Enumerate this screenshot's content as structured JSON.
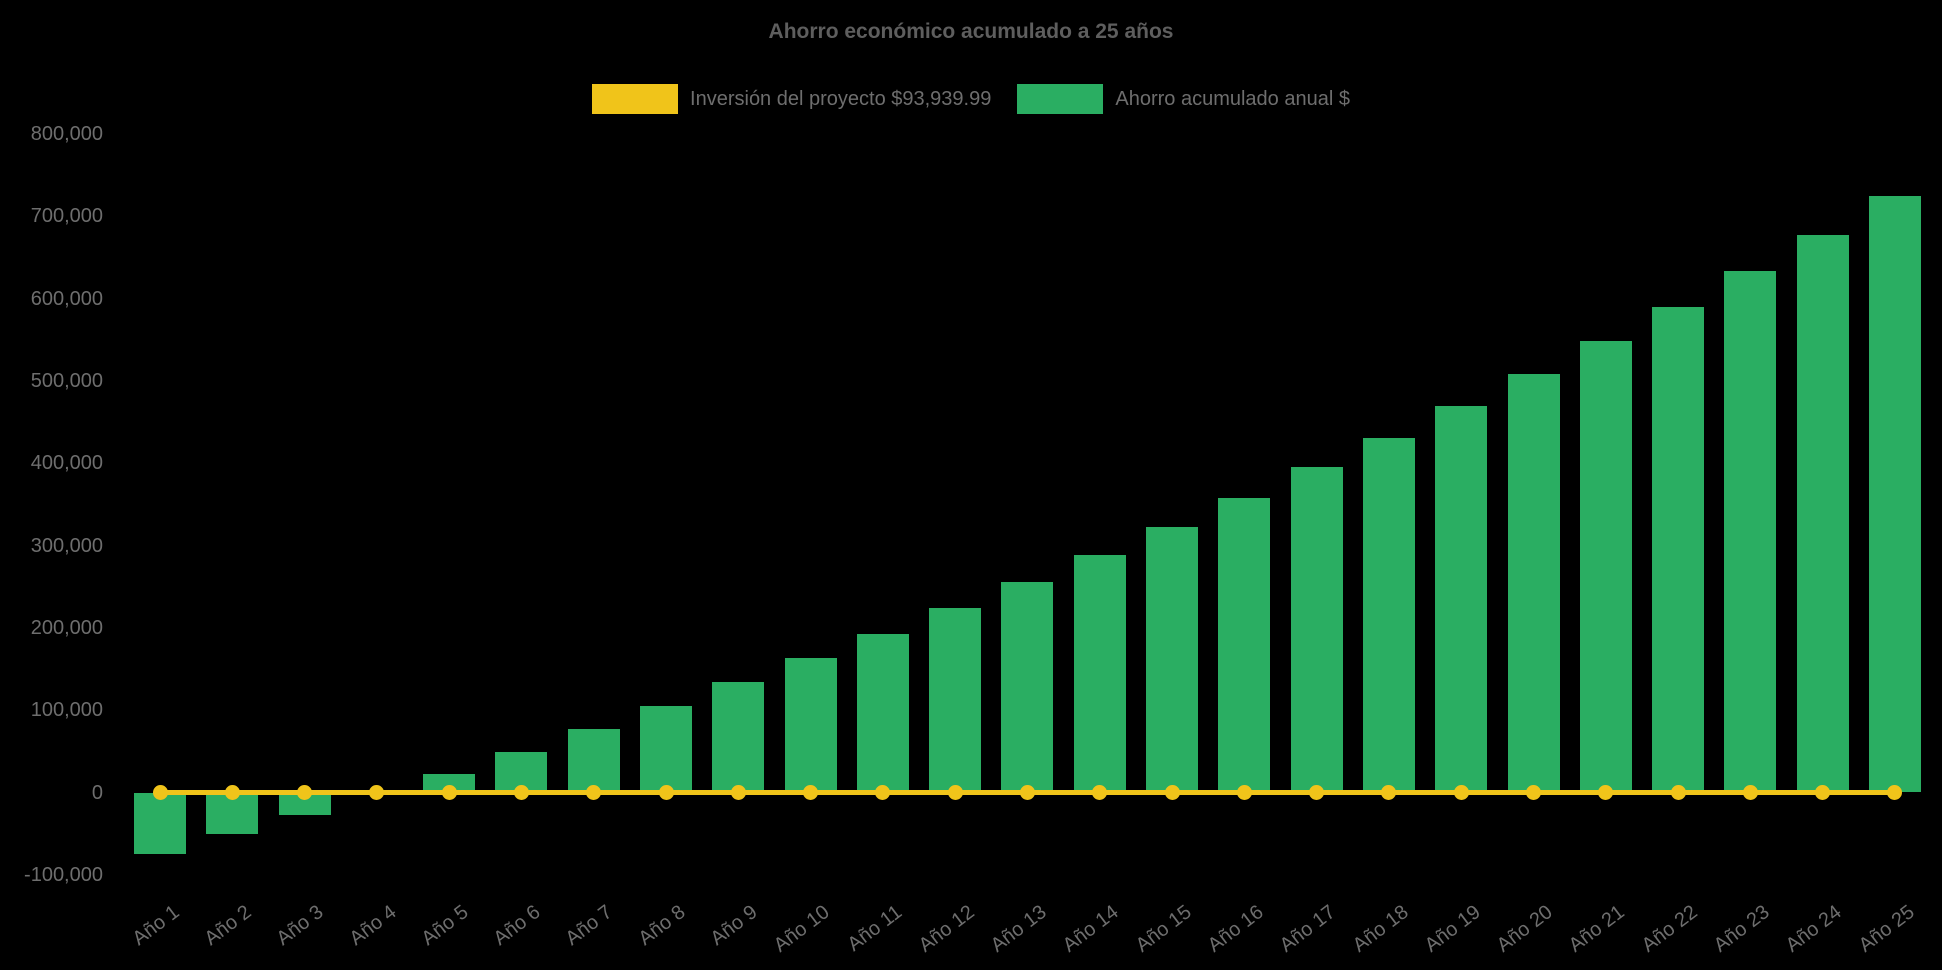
{
  "title": "Ahorro económico acumulado a 25 años",
  "legend": [
    {
      "label": "Inversión del proyecto $93,939.99",
      "color": "#f0c41a"
    },
    {
      "label": "Ahorro acumulado anual $",
      "color": "#2aae62"
    }
  ],
  "colors": {
    "background": "#000000",
    "bar_green": "#2aae62",
    "line_yellow": "#f0c41a",
    "title_text": "#5e5e5e",
    "axis_text": "#6e6e6e"
  },
  "chart_data": {
    "type": "bar",
    "title": "Ahorro económico acumulado a 25 años",
    "categories": [
      "Año 1",
      "Año 2",
      "Año 3",
      "Año 4",
      "Año 5",
      "Año 6",
      "Año 7",
      "Año 8",
      "Año 9",
      "Año 10",
      "Año 11",
      "Año 12",
      "Año 13",
      "Año 14",
      "Año 15",
      "Año 16",
      "Año 17",
      "Año 18",
      "Año 19",
      "Año 20",
      "Año 21",
      "Año 22",
      "Año 23",
      "Año 24",
      "Año 25"
    ],
    "series": [
      {
        "name": "Ahorro acumulado anual $",
        "type": "bar",
        "color": "#2aae62",
        "values": [
          -75000,
          -50000,
          -27000,
          -2000,
          23000,
          49000,
          77000,
          105000,
          134000,
          163000,
          193000,
          224000,
          256000,
          289000,
          323000,
          358000,
          395000,
          431000,
          470000,
          509000,
          549000,
          590000,
          634000,
          678000,
          725000
        ]
      },
      {
        "name": "Inversión del proyecto $93,939.99",
        "type": "line",
        "color": "#f0c41a",
        "values": [
          0,
          0,
          0,
          0,
          0,
          0,
          0,
          0,
          0,
          0,
          0,
          0,
          0,
          0,
          0,
          0,
          0,
          0,
          0,
          0,
          0,
          0,
          0,
          0,
          0
        ]
      }
    ],
    "y_ticks": [
      800000,
      700000,
      600000,
      500000,
      400000,
      300000,
      200000,
      100000,
      0,
      -100000
    ],
    "ylim": [
      -100000,
      800000
    ],
    "xlabel": "",
    "ylabel": "",
    "grid": false,
    "legend_position": "top",
    "x_label_rotation_deg": -37
  }
}
